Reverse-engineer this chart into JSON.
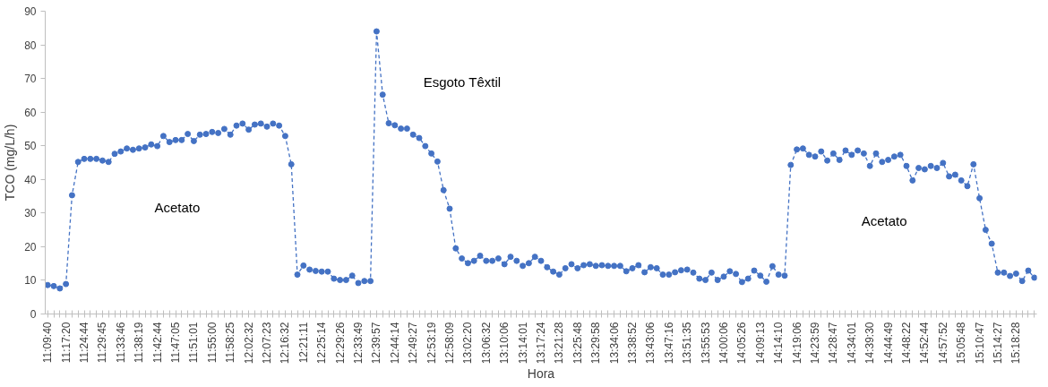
{
  "chart_data": {
    "type": "line",
    "xlabel": "Hora",
    "ylabel": "TCO (mg/L/h)",
    "categories": [
      "11:09:40",
      null,
      null,
      "11:17:20",
      null,
      null,
      "11:24:44",
      null,
      null,
      "11:29:45",
      null,
      null,
      "11:33:46",
      null,
      null,
      "11:38:19",
      null,
      null,
      "11:42:44",
      null,
      null,
      "11:47:05",
      null,
      null,
      "11:51:01",
      null,
      null,
      "11:55:00",
      null,
      null,
      "11:58:25",
      null,
      null,
      "12:02:32",
      null,
      null,
      "12:07:23",
      null,
      null,
      "12:16:32",
      null,
      null,
      "12:21:11",
      null,
      null,
      "12:25:14",
      null,
      null,
      "12:29:26",
      null,
      null,
      "12:33:49",
      null,
      null,
      "12:39:57",
      null,
      null,
      "12:44:14",
      null,
      null,
      "12:49:27",
      null,
      null,
      "12:53:19",
      null,
      null,
      "12:58:09",
      null,
      null,
      "13:02:20",
      null,
      null,
      "13:06:32",
      null,
      null,
      "13:10:06",
      null,
      null,
      "13:14:01",
      null,
      null,
      "13:17:24",
      null,
      null,
      "13:21:28",
      null,
      null,
      "13:25:48",
      null,
      null,
      "13:29:58",
      null,
      null,
      "13:34:06",
      null,
      null,
      "13:38:52",
      null,
      null,
      "13:43:06",
      null,
      null,
      "13:47:16",
      null,
      null,
      "13:51:35",
      null,
      null,
      "13:55:53",
      null,
      null,
      "14:00:06",
      null,
      null,
      "14:05:26",
      null,
      null,
      "14:09:13",
      null,
      null,
      "14:14:10",
      null,
      null,
      "14:19:06",
      null,
      null,
      "14:23:59",
      null,
      null,
      "14:28:47",
      null,
      null,
      "14:34:01",
      null,
      null,
      "14:39:30",
      null,
      null,
      "14:44:49",
      null,
      null,
      "14:48:22",
      null,
      null,
      "14:52:44",
      null,
      null,
      "14:57:52",
      null,
      null,
      "15:05:48",
      null,
      null,
      "15:10:47",
      null,
      null,
      "15:14:27",
      null,
      null,
      "15:18:28",
      null,
      null,
      null
    ],
    "series": [
      {
        "color": "#4472c4",
        "values": [
          8.6,
          8.3,
          7.6,
          8.9,
          35.3,
          45.2,
          46.1,
          46.1,
          46.1,
          45.6,
          45.2,
          47.6,
          48.3,
          49.2,
          48.8,
          49.2,
          49.5,
          50.4,
          49.9,
          52.9,
          51.1,
          51.7,
          51.7,
          53.5,
          51.4,
          53.3,
          53.5,
          54.1,
          53.8,
          55.0,
          53.3,
          56.0,
          56.6,
          54.8,
          56.3,
          56.6,
          55.7,
          56.6,
          56.0,
          52.9,
          44.5,
          11.7,
          14.4,
          13.2,
          12.8,
          12.6,
          12.6,
          10.5,
          10.1,
          10.1,
          11.4,
          9.2,
          9.8,
          9.8,
          84.0,
          65.2,
          56.7,
          56.1,
          55.1,
          55.1,
          53.3,
          52.3,
          49.9,
          47.7,
          45.3,
          36.8,
          31.3,
          19.5,
          16.5,
          15.1,
          15.8,
          17.3,
          15.8,
          15.8,
          16.5,
          14.8,
          17.0,
          15.8,
          14.3,
          15.1,
          17.0,
          15.8,
          13.9,
          12.6,
          11.7,
          13.6,
          14.8,
          13.6,
          14.5,
          14.8,
          14.3,
          14.5,
          14.3,
          14.3,
          14.3,
          12.7,
          13.6,
          14.5,
          12.4,
          13.9,
          13.6,
          11.7,
          11.7,
          12.4,
          13.0,
          13.2,
          12.3,
          10.5,
          10.1,
          12.3,
          10.1,
          11.1,
          12.7,
          11.9,
          9.5,
          10.5,
          12.9,
          11.4,
          9.6,
          14.2,
          11.7,
          11.4,
          44.3,
          48.9,
          49.2,
          47.3,
          46.8,
          48.3,
          45.6,
          47.7,
          45.8,
          48.6,
          47.3,
          48.6,
          47.7,
          44.0,
          47.7,
          45.2,
          45.8,
          46.8,
          47.3,
          44.0,
          39.7,
          43.4,
          43.0,
          44.0,
          43.4,
          44.9,
          40.9,
          41.4,
          39.7,
          38.0,
          44.5,
          34.4,
          25.0,
          20.9,
          12.3,
          12.3,
          11.3,
          12.0,
          9.8,
          12.9,
          10.8
        ]
      }
    ],
    "ylim": [
      0,
      90
    ],
    "yticks": [
      0,
      10,
      20,
      30,
      40,
      50,
      60,
      70,
      80,
      90
    ],
    "marker": "circle",
    "line_style": "dashed",
    "grid": false,
    "annotations": [
      "Acetato",
      "Esgoto Têxtil",
      "Acetato"
    ]
  }
}
